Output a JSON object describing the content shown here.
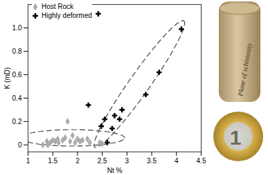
{
  "chart_data": {
    "type": "scatter",
    "xlabel": "Nt %",
    "ylabel": "K (mD)",
    "xlim": [
      1,
      4.5
    ],
    "xticks": [
      1,
      1.5,
      2,
      2.5,
      3,
      3.5,
      4,
      4.5
    ],
    "ylim": [
      -0.06,
      1.2
    ],
    "yticks": [
      0,
      0.2,
      0.4,
      0.6,
      0.8,
      {
        "value": 1,
        "label": "1.0"
      }
    ],
    "grid": false,
    "legend": "upper left",
    "series": [
      {
        "name": "Host Rock",
        "color": "#aaaaaa",
        "marker": "diamond",
        "x": [
          1.3,
          1.38,
          1.4,
          1.45,
          1.5,
          1.55,
          1.6,
          1.62,
          1.7,
          1.75,
          1.8,
          1.85,
          1.9,
          1.95,
          2.0,
          2.05,
          2.1,
          2.2,
          2.25,
          2.45,
          2.5
        ],
        "values": [
          0.0,
          0.03,
          0.0,
          0.02,
          0.04,
          0.03,
          0.05,
          0.02,
          0.04,
          0.06,
          0.2,
          0.03,
          0.08,
          0.02,
          0.05,
          0.03,
          0.04,
          0.05,
          0.02,
          0.02,
          0.01
        ]
      },
      {
        "name": "Highly deformed",
        "color": "#000000",
        "marker": "cross",
        "x": [
          2.42,
          2.22,
          2.48,
          2.55,
          2.6,
          2.7,
          2.75,
          2.85,
          2.9,
          3.38,
          3.65,
          4.1
        ],
        "values": [
          1.12,
          0.34,
          0.16,
          0.22,
          0.02,
          0.14,
          0.25,
          0.22,
          0.3,
          0.43,
          0.62,
          0.99
        ]
      }
    ],
    "regions": [
      {
        "center": [
          1.9,
          0.06
        ],
        "axis1": [
          2.95,
          0.06
        ],
        "axis2": [
          1.9,
          0.13
        ],
        "line_style": "dashed",
        "color": "#444444"
      },
      {
        "center": [
          3.25,
          0.52
        ],
        "axis1": [
          4.15,
          1.06
        ],
        "axis2": [
          3.42,
          0.47
        ],
        "line_style": "dashed",
        "color": "#444444"
      }
    ],
    "annotations": [
      "Plane of schistosity",
      "1"
    ]
  }
}
